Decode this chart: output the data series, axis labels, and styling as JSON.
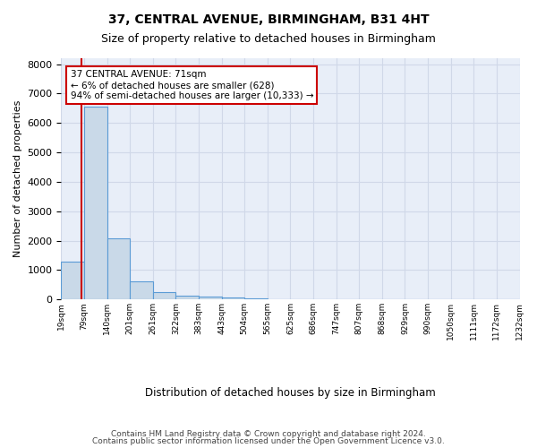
{
  "title1": "37, CENTRAL AVENUE, BIRMINGHAM, B31 4HT",
  "title2": "Size of property relative to detached houses in Birmingham",
  "xlabel": "Distribution of detached houses by size in Birmingham",
  "ylabel": "Number of detached properties",
  "bin_edges": [
    "19sqm",
    "79sqm",
    "140sqm",
    "201sqm",
    "261sqm",
    "322sqm",
    "383sqm",
    "443sqm",
    "504sqm",
    "565sqm",
    "625sqm",
    "686sqm",
    "747sqm",
    "807sqm",
    "868sqm",
    "929sqm",
    "990sqm",
    "1050sqm",
    "1111sqm",
    "1172sqm",
    "1232sqm"
  ],
  "bar_values": [
    1300,
    6550,
    2080,
    630,
    250,
    130,
    100,
    80,
    50,
    0,
    0,
    0,
    0,
    0,
    0,
    0,
    0,
    0,
    0,
    0
  ],
  "bar_color": "#c9d9e8",
  "bar_edge_color": "#5b9bd5",
  "annotation_text": "37 CENTRAL AVENUE: 71sqm\n← 6% of detached houses are smaller (628)\n94% of semi-detached houses are larger (10,333) →",
  "annotation_box_color": "#ffffff",
  "annotation_border_color": "#cc0000",
  "red_line_color": "#cc0000",
  "ylim": [
    0,
    8200
  ],
  "yticks": [
    0,
    1000,
    2000,
    3000,
    4000,
    5000,
    6000,
    7000,
    8000
  ],
  "grid_color": "#d0d8e8",
  "bg_color": "#e8eef8",
  "footer1": "Contains HM Land Registry data © Crown copyright and database right 2024.",
  "footer2": "Contains public sector information licensed under the Open Government Licence v3.0."
}
